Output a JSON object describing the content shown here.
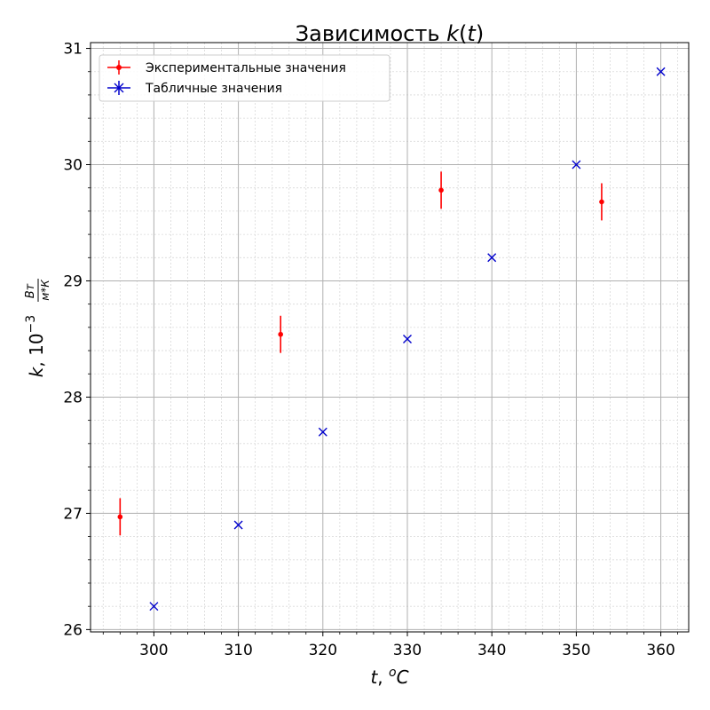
{
  "chart_data": {
    "type": "scatter",
    "title": "Зависимость k(t)",
    "xlabel": "t, °C",
    "ylabel": "k, 10⁻³ Вт/(м*К)",
    "xlim": [
      292.5,
      363.3
    ],
    "ylim": [
      25.98,
      31.05
    ],
    "x_ticks": [
      300,
      310,
      320,
      330,
      340,
      350,
      360
    ],
    "y_ticks": [
      26,
      27,
      28,
      29,
      30,
      31
    ],
    "grid": true,
    "minor_grid": true,
    "legend_position": "top-left",
    "series": [
      {
        "name": "Экспериментальные значения",
        "marker": "dot-with-errorbar",
        "color": "#ff0000",
        "points": [
          {
            "x": 296,
            "y": 26.97,
            "yerr": 0.16
          },
          {
            "x": 315,
            "y": 28.54,
            "yerr": 0.16
          },
          {
            "x": 334,
            "y": 29.78,
            "yerr": 0.16
          },
          {
            "x": 353,
            "y": 29.68,
            "yerr": 0.16
          }
        ]
      },
      {
        "name": "Табличные значения",
        "marker": "x",
        "color": "#0000cc",
        "points": [
          {
            "x": 300,
            "y": 26.2
          },
          {
            "x": 310,
            "y": 26.9
          },
          {
            "x": 320,
            "y": 27.7
          },
          {
            "x": 330,
            "y": 28.5
          },
          {
            "x": 340,
            "y": 29.2
          },
          {
            "x": 350,
            "y": 30.0
          },
          {
            "x": 360,
            "y": 30.8
          }
        ]
      }
    ]
  }
}
